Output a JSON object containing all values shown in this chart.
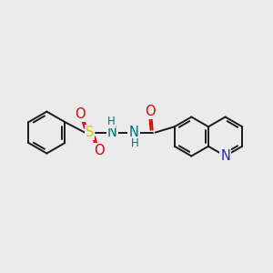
{
  "background_color": "#ebebeb",
  "bond_color": "#1a1a1a",
  "n_color": "#2222cc",
  "o_color": "#dd0000",
  "s_color": "#cccc00",
  "nh_color": "#007070",
  "line_width": 1.4,
  "figsize": [
    3.0,
    3.0
  ],
  "dpi": 100,
  "xlim": [
    0,
    10
  ],
  "ylim": [
    0,
    10
  ]
}
